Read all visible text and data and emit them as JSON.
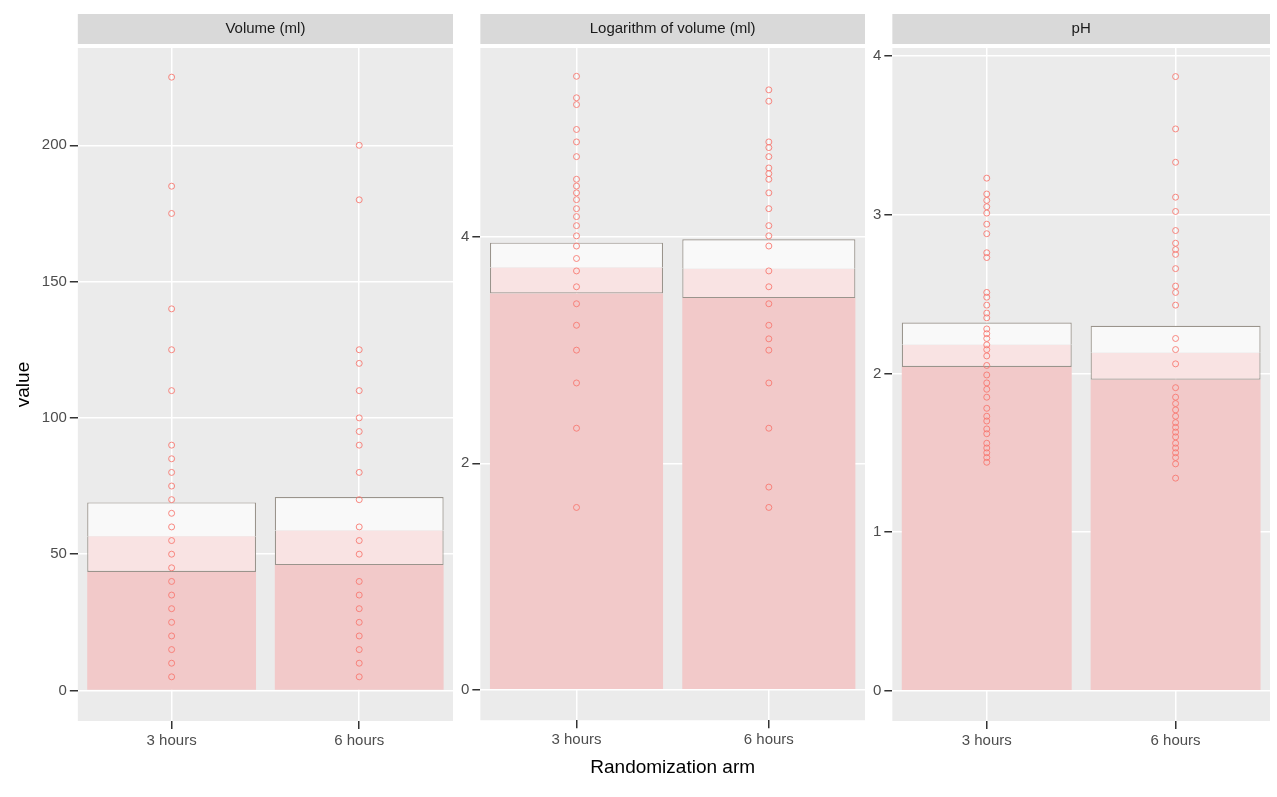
{
  "chart_data": [
    {
      "type": "bar",
      "stacked": true,
      "title": "Volume (ml)",
      "ylabel": "value",
      "categories": [
        "3 hours",
        "6 hours"
      ],
      "ylim": [
        -11.2,
        235.7
      ],
      "yticks": [
        0,
        50,
        100,
        150,
        200
      ],
      "grid": true,
      "marker": "circle",
      "series": [
        {
          "color": "#f2c9c9",
          "values": [
            43.5,
            46
          ]
        },
        {
          "color": "#f9e3e3",
          "values": [
            13.1,
            12.7
          ]
        },
        {
          "color": "#f9f9f9",
          "values": [
            12.4,
            12.3
          ]
        },
        {
          "type": "scatter",
          "color": "#f8766d",
          "x": [
            "3 hours",
            "3 hours",
            "3 hours",
            "3 hours",
            "3 hours",
            "3 hours",
            "3 hours",
            "3 hours",
            "3 hours",
            "3 hours",
            "3 hours",
            "3 hours",
            "3 hours",
            "3 hours",
            "3 hours",
            "3 hours",
            "3 hours",
            "3 hours",
            "3 hours",
            "3 hours",
            "3 hours",
            "3 hours",
            "3 hours",
            "3 hours"
          ],
          "values": [
            225,
            185,
            175,
            140,
            125,
            110,
            90,
            85,
            80,
            75,
            70,
            65,
            60,
            55,
            50,
            45,
            40,
            35,
            30,
            25,
            20,
            15,
            10,
            5
          ]
        },
        {
          "type": "scatter",
          "color": "#f8766d",
          "x": [
            "6 hours",
            "6 hours",
            "6 hours",
            "6 hours",
            "6 hours",
            "6 hours",
            "6 hours",
            "6 hours",
            "6 hours",
            "6 hours",
            "6 hours",
            "6 hours",
            "6 hours",
            "6 hours",
            "6 hours",
            "6 hours",
            "6 hours",
            "6 hours",
            "6 hours",
            "6 hours",
            "6 hours"
          ],
          "values": [
            200,
            180,
            125,
            120,
            110,
            100,
            95,
            90,
            80,
            70,
            60,
            55,
            50,
            40,
            35,
            30,
            25,
            20,
            15,
            10,
            5
          ]
        }
      ]
    },
    {
      "type": "bar",
      "stacked": true,
      "title": "Logarithm of volume (ml)",
      "xlabel": "Randomization arm",
      "categories": [
        "3 hours",
        "6 hours"
      ],
      "ylim": [
        -0.27,
        5.67
      ],
      "yticks": [
        0,
        2,
        4
      ],
      "grid": true,
      "marker": "circle",
      "series": [
        {
          "color": "#f2c9c9",
          "values": [
            3.5,
            3.46
          ]
        },
        {
          "color": "#f9e3e3",
          "values": [
            0.23,
            0.26
          ]
        },
        {
          "color": "#f9f9f9",
          "values": [
            0.22,
            0.26
          ]
        },
        {
          "type": "scatter",
          "color": "#f8766d",
          "x": [
            "3 hours",
            "3 hours",
            "3 hours",
            "3 hours",
            "3 hours",
            "3 hours",
            "3 hours",
            "3 hours",
            "3 hours",
            "3 hours",
            "3 hours",
            "3 hours",
            "3 hours",
            "3 hours",
            "3 hours",
            "3 hours",
            "3 hours",
            "3 hours",
            "3 hours",
            "3 hours",
            "3 hours",
            "3 hours",
            "3 hours",
            "3 hours"
          ],
          "values": [
            5.42,
            5.23,
            5.17,
            4.95,
            4.84,
            4.71,
            4.51,
            4.45,
            4.39,
            4.33,
            4.25,
            4.18,
            4.1,
            4.01,
            3.92,
            3.81,
            3.7,
            3.56,
            3.41,
            3.22,
            3,
            2.71,
            2.31,
            1.61
          ]
        },
        {
          "type": "scatter",
          "color": "#f8766d",
          "x": [
            "6 hours",
            "6 hours",
            "6 hours",
            "6 hours",
            "6 hours",
            "6 hours",
            "6 hours",
            "6 hours",
            "6 hours",
            "6 hours",
            "6 hours",
            "6 hours",
            "6 hours",
            "6 hours",
            "6 hours",
            "6 hours",
            "6 hours",
            "6 hours",
            "6 hours",
            "6 hours",
            "6 hours",
            "6 hours",
            "6 hours"
          ],
          "values": [
            5.3,
            5.2,
            4.84,
            4.79,
            4.71,
            4.61,
            4.56,
            4.51,
            4.39,
            4.25,
            4.1,
            4.01,
            3.92,
            3.7,
            3.56,
            3.41,
            3.22,
            3.1,
            3,
            2.71,
            2.31,
            1.79,
            1.61
          ]
        }
      ]
    },
    {
      "type": "bar",
      "stacked": true,
      "title": "pH",
      "categories": [
        "3 hours",
        "6 hours"
      ],
      "ylim": [
        -0.19,
        4.05
      ],
      "yticks": [
        0,
        1,
        2,
        3,
        4
      ],
      "grid": true,
      "marker": "circle",
      "series": [
        {
          "color": "#f2c9c9",
          "values": [
            2.04,
            1.96
          ]
        },
        {
          "color": "#f9e3e3",
          "values": [
            0.14,
            0.17
          ]
        },
        {
          "color": "#f9f9f9",
          "values": [
            0.14,
            0.17
          ]
        },
        {
          "type": "scatter",
          "color": "#f8766d",
          "x": [
            "3 hours",
            "3 hours",
            "3 hours",
            "3 hours",
            "3 hours",
            "3 hours",
            "3 hours",
            "3 hours",
            "3 hours",
            "3 hours",
            "3 hours",
            "3 hours",
            "3 hours",
            "3 hours",
            "3 hours",
            "3 hours",
            "3 hours",
            "3 hours",
            "3 hours",
            "3 hours",
            "3 hours",
            "3 hours",
            "3 hours",
            "3 hours",
            "3 hours",
            "3 hours",
            "3 hours",
            "3 hours",
            "3 hours",
            "3 hours",
            "3 hours",
            "3 hours",
            "3 hours",
            "3 hours",
            "3 hours"
          ],
          "values": [
            3.23,
            3.13,
            3.09,
            3.05,
            3.01,
            2.94,
            2.88,
            2.76,
            2.73,
            2.51,
            2.48,
            2.43,
            2.38,
            2.35,
            2.28,
            2.25,
            2.22,
            2.18,
            2.15,
            2.11,
            2.05,
            1.99,
            1.94,
            1.9,
            1.85,
            1.78,
            1.73,
            1.7,
            1.65,
            1.62,
            1.56,
            1.53,
            1.5,
            1.47,
            1.44
          ]
        },
        {
          "type": "scatter",
          "color": "#f8766d",
          "x": [
            "6 hours",
            "6 hours",
            "6 hours",
            "6 hours",
            "6 hours",
            "6 hours",
            "6 hours",
            "6 hours",
            "6 hours",
            "6 hours",
            "6 hours",
            "6 hours",
            "6 hours",
            "6 hours",
            "6 hours",
            "6 hours",
            "6 hours",
            "6 hours",
            "6 hours",
            "6 hours",
            "6 hours",
            "6 hours",
            "6 hours",
            "6 hours",
            "6 hours",
            "6 hours",
            "6 hours",
            "6 hours",
            "6 hours",
            "6 hours",
            "6 hours"
          ],
          "values": [
            3.87,
            3.54,
            3.33,
            3.11,
            3.02,
            2.9,
            2.82,
            2.78,
            2.75,
            2.66,
            2.55,
            2.51,
            2.43,
            2.22,
            2.15,
            2.06,
            1.91,
            1.85,
            1.81,
            1.77,
            1.73,
            1.69,
            1.66,
            1.63,
            1.6,
            1.56,
            1.53,
            1.5,
            1.47,
            1.43,
            1.34
          ]
        }
      ]
    }
  ]
}
